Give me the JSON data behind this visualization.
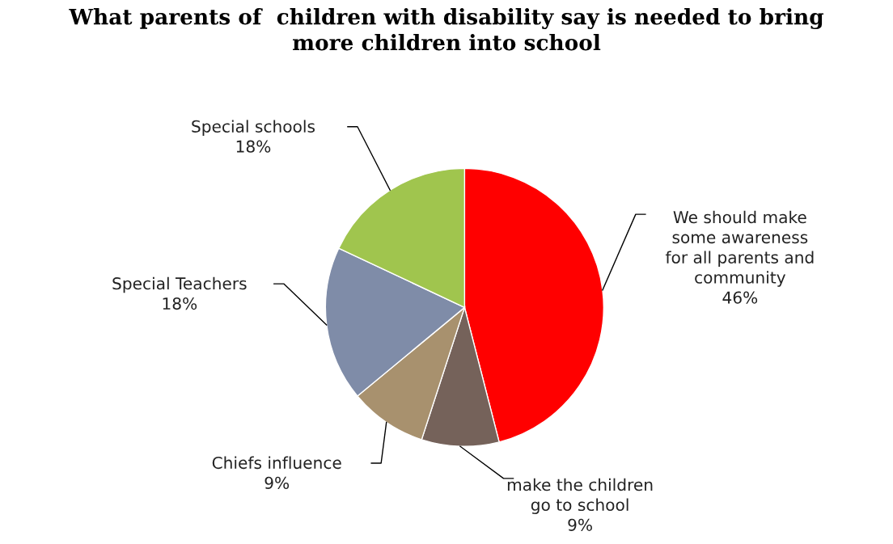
{
  "chart_data": {
    "type": "pie",
    "title": "What parents of  children with disability say is needed to bring\nmore children into school",
    "categories": [
      "We should make\nsome awareness\nfor all parents and\ncommunity",
      "make the children\ngo to school",
      "Chiefs influence",
      "Special Teachers",
      "Special schools"
    ],
    "values": [
      46,
      9,
      9,
      18,
      18
    ],
    "value_labels": [
      "46%",
      "9%",
      "9%",
      "18%",
      "18%"
    ],
    "colors": [
      "#ff0000",
      "#75625a",
      "#a8916e",
      "#7f8ca8",
      "#a0c54e"
    ]
  }
}
